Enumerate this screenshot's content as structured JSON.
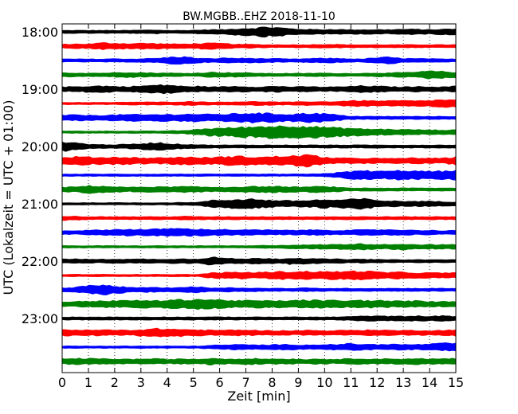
{
  "chart_data": {
    "type": "helicorder",
    "title": "BW.MGBB..EHZ 2018-11-10",
    "xlabel": "Zeit  [min]",
    "ylabel": "UTC (Lokalzeit = UTC + 01:00)",
    "xlim": [
      0,
      15
    ],
    "x_ticks": [
      "0",
      "1",
      "2",
      "3",
      "4",
      "5",
      "6",
      "7",
      "8",
      "9",
      "10",
      "11",
      "12",
      "13",
      "14",
      "15"
    ],
    "y_ticks": [
      "18:00",
      "19:00",
      "20:00",
      "21:00",
      "22:00",
      "23:00"
    ],
    "trace_interval_min": 15,
    "start_time": "18:00",
    "grid": "vertical dotted",
    "trace_colors": [
      "#000000",
      "#ff0000",
      "#0000ff",
      "#008000"
    ],
    "traces": [
      {
        "start": "18:00",
        "color": "#000000",
        "amplitude": [
          0.3,
          0.3,
          0.3,
          0.3,
          0.3,
          0.3,
          0.4,
          0.4,
          0.3,
          0.3,
          0.4,
          0.5,
          0.5,
          0.8,
          0.9,
          1.2,
          1.0,
          0.7,
          0.6,
          0.5,
          0.6,
          0.5,
          0.5,
          0.5,
          0.5,
          0.6,
          0.6,
          0.5,
          0.6,
          0.7
        ]
      },
      {
        "start": "18:15",
        "color": "#ff0000",
        "amplitude": [
          0.4,
          0.5,
          0.5,
          0.8,
          0.7,
          0.6,
          0.7,
          0.6,
          0.5,
          0.5,
          0.6,
          0.7,
          0.6,
          0.4,
          0.4,
          0.3,
          0.3,
          0.3,
          0.3,
          0.4,
          0.4,
          0.3,
          0.3,
          0.3,
          0.3,
          0.3,
          0.3,
          0.3,
          0.3,
          0.3
        ]
      },
      {
        "start": "18:30",
        "color": "#0000ff",
        "amplitude": [
          0.3,
          0.3,
          0.3,
          0.3,
          0.4,
          0.3,
          0.4,
          0.5,
          0.8,
          0.9,
          0.5,
          0.4,
          0.6,
          0.5,
          0.5,
          0.4,
          0.4,
          0.3,
          0.4,
          0.5,
          0.5,
          0.4,
          0.3,
          0.6,
          0.8,
          0.5,
          0.4,
          0.4,
          0.3,
          0.3
        ]
      },
      {
        "start": "18:45",
        "color": "#008000",
        "amplitude": [
          0.5,
          0.4,
          0.4,
          0.4,
          0.5,
          0.6,
          0.5,
          0.4,
          0.4,
          0.3,
          0.4,
          0.6,
          0.5,
          0.5,
          0.4,
          0.3,
          0.3,
          0.3,
          0.3,
          0.4,
          0.3,
          0.3,
          0.3,
          0.4,
          0.4,
          0.5,
          0.6,
          0.9,
          0.8,
          0.6
        ]
      },
      {
        "start": "19:00",
        "color": "#000000",
        "amplitude": [
          0.5,
          0.6,
          0.7,
          0.8,
          0.6,
          0.6,
          0.8,
          1.0,
          1.0,
          0.6,
          0.7,
          0.5,
          0.6,
          0.7,
          0.5,
          0.6,
          0.7,
          0.5,
          0.6,
          0.5,
          0.5,
          0.6,
          0.8,
          0.7,
          0.6,
          0.5,
          0.6,
          0.6,
          0.5,
          0.7
        ]
      },
      {
        "start": "19:15",
        "color": "#ff0000",
        "amplitude": [
          0.2,
          0.2,
          0.2,
          0.2,
          0.2,
          0.3,
          0.3,
          0.3,
          0.3,
          0.4,
          0.4,
          0.3,
          0.3,
          0.4,
          0.4,
          0.4,
          0.3,
          0.3,
          0.4,
          0.4,
          0.4,
          0.6,
          0.7,
          0.6,
          0.6,
          0.7,
          0.6,
          0.7,
          0.9,
          0.8
        ]
      },
      {
        "start": "19:30",
        "color": "#0000ff",
        "amplitude": [
          0.6,
          0.7,
          0.6,
          0.6,
          0.7,
          0.8,
          0.7,
          0.8,
          0.8,
          0.9,
          0.9,
          0.8,
          0.9,
          1.0,
          1.2,
          1.1,
          0.9,
          0.9,
          1.1,
          1.1,
          0.8,
          0.4,
          0.3,
          0.3,
          0.3,
          0.3,
          0.3,
          0.3,
          0.3,
          0.3
        ]
      },
      {
        "start": "19:45",
        "color": "#008000",
        "amplitude": [
          0.2,
          0.2,
          0.2,
          0.2,
          0.2,
          0.2,
          0.2,
          0.2,
          0.3,
          0.3,
          0.7,
          0.9,
          1.0,
          1.2,
          1.3,
          1.5,
          1.5,
          1.6,
          1.5,
          1.3,
          1.1,
          1.0,
          0.8,
          0.7,
          0.7,
          0.6,
          0.6,
          0.5,
          0.5,
          0.5
        ]
      },
      {
        "start": "20:00",
        "color": "#000000",
        "amplitude": [
          1.2,
          0.9,
          0.5,
          0.4,
          0.4,
          0.5,
          0.7,
          1.0,
          0.6,
          0.5,
          0.4,
          0.3,
          0.3,
          0.3,
          0.3,
          0.3,
          0.3,
          0.3,
          0.3,
          0.3,
          0.3,
          0.3,
          0.3,
          0.3,
          0.3,
          0.3,
          0.3,
          0.3,
          0.3,
          0.3
        ]
      },
      {
        "start": "20:15",
        "color": "#ff0000",
        "amplitude": [
          0.7,
          1.0,
          0.9,
          0.8,
          0.9,
          0.8,
          0.7,
          0.7,
          0.8,
          0.9,
          0.8,
          0.8,
          1.0,
          1.1,
          0.9,
          0.9,
          1.1,
          1.2,
          1.5,
          1.0,
          0.7,
          0.6,
          0.6,
          0.6,
          0.5,
          0.6,
          0.7,
          0.6,
          0.6,
          0.9
        ]
      },
      {
        "start": "20:30",
        "color": "#0000ff",
        "amplitude": [
          0.2,
          0.2,
          0.2,
          0.2,
          0.2,
          0.2,
          0.2,
          0.2,
          0.2,
          0.2,
          0.2,
          0.2,
          0.2,
          0.2,
          0.2,
          0.2,
          0.2,
          0.2,
          0.2,
          0.3,
          0.5,
          0.8,
          1.1,
          1.0,
          0.9,
          1.2,
          1.0,
          0.9,
          1.0,
          1.1
        ]
      },
      {
        "start": "20:45",
        "color": "#008000",
        "amplitude": [
          0.5,
          0.6,
          0.9,
          0.8,
          0.6,
          0.5,
          0.6,
          0.6,
          0.6,
          0.7,
          0.6,
          0.5,
          0.5,
          0.6,
          0.7,
          0.7,
          0.7,
          0.6,
          0.6,
          0.7,
          0.6,
          0.3,
          0.3,
          0.3,
          0.3,
          0.3,
          0.3,
          0.3,
          0.3,
          0.3
        ]
      },
      {
        "start": "21:00",
        "color": "#000000",
        "amplitude": [
          0.2,
          0.2,
          0.2,
          0.2,
          0.2,
          0.2,
          0.2,
          0.2,
          0.2,
          0.3,
          0.3,
          0.8,
          0.9,
          1.1,
          1.2,
          0.9,
          0.8,
          0.7,
          0.8,
          1.0,
          0.9,
          1.0,
          1.3,
          0.9,
          0.7,
          0.6,
          0.6,
          0.6,
          0.5,
          0.4
        ]
      },
      {
        "start": "21:15",
        "color": "#ff0000",
        "amplitude": [
          0.5,
          0.4,
          0.3,
          0.3,
          0.3,
          0.3,
          0.3,
          0.3,
          0.3,
          0.4,
          0.3,
          0.3,
          0.3,
          0.3,
          0.3,
          0.3,
          0.3,
          0.3,
          0.3,
          0.3,
          0.3,
          0.3,
          0.3,
          0.3,
          0.3,
          0.3,
          0.3,
          0.3,
          0.3,
          0.3
        ]
      },
      {
        "start": "21:30",
        "color": "#0000ff",
        "amplitude": [
          0.4,
          0.4,
          0.5,
          0.6,
          0.7,
          0.8,
          0.7,
          0.8,
          1.0,
          0.9,
          0.8,
          0.7,
          0.7,
          0.6,
          0.6,
          0.6,
          0.5,
          0.5,
          0.6,
          0.6,
          0.5,
          0.5,
          0.6,
          0.6,
          0.7,
          0.6,
          0.5,
          0.5,
          0.4,
          0.5
        ]
      },
      {
        "start": "21:45",
        "color": "#008000",
        "amplitude": [
          0.2,
          0.2,
          0.2,
          0.2,
          0.2,
          0.2,
          0.2,
          0.2,
          0.2,
          0.2,
          0.2,
          0.2,
          0.2,
          0.2,
          0.2,
          0.3,
          0.3,
          0.4,
          0.4,
          0.5,
          0.5,
          0.6,
          0.7,
          0.6,
          0.5,
          0.7,
          0.5,
          0.5,
          0.5,
          0.5
        ]
      },
      {
        "start": "22:00",
        "color": "#000000",
        "amplitude": [
          0.5,
          0.5,
          0.4,
          0.4,
          0.5,
          0.4,
          0.5,
          0.4,
          0.5,
          0.5,
          0.5,
          1.0,
          0.7,
          0.5,
          0.6,
          0.7,
          0.5,
          0.8,
          0.6,
          0.5,
          0.5,
          0.4,
          0.4,
          0.4,
          0.3,
          0.3,
          0.3,
          0.3,
          0.3,
          0.3
        ]
      },
      {
        "start": "22:15",
        "color": "#ff0000",
        "amplitude": [
          0.2,
          0.2,
          0.2,
          0.2,
          0.2,
          0.2,
          0.2,
          0.2,
          0.2,
          0.2,
          0.2,
          0.6,
          0.7,
          0.8,
          0.7,
          0.8,
          0.9,
          0.9,
          1.0,
          0.9,
          0.9,
          1.0,
          1.1,
          0.9,
          0.7,
          0.8,
          0.6,
          0.6,
          0.6,
          0.6
        ]
      },
      {
        "start": "22:30",
        "color": "#0000ff",
        "amplitude": [
          0.4,
          0.6,
          1.0,
          1.2,
          0.9,
          0.5,
          0.6,
          0.5,
          0.5,
          0.6,
          0.7,
          0.4,
          0.5,
          0.4,
          0.4,
          0.3,
          0.3,
          0.3,
          0.4,
          0.3,
          0.3,
          0.3,
          0.3,
          0.3,
          0.3,
          0.3,
          0.3,
          0.3,
          0.3,
          0.3
        ]
      },
      {
        "start": "22:45",
        "color": "#008000",
        "amplitude": [
          0.5,
          0.6,
          0.7,
          0.8,
          0.8,
          0.9,
          0.9,
          0.8,
          1.0,
          1.1,
          1.2,
          1.1,
          1.0,
          0.8,
          0.9,
          0.8,
          0.8,
          0.9,
          1.0,
          0.9,
          0.9,
          0.8,
          0.9,
          0.9,
          0.8,
          0.7,
          0.8,
          0.6,
          0.6,
          0.7
        ]
      },
      {
        "start": "23:00",
        "color": "#000000",
        "amplitude": [
          0.3,
          0.3,
          0.3,
          0.3,
          0.3,
          0.3,
          0.3,
          0.3,
          0.3,
          0.3,
          0.3,
          0.3,
          0.3,
          0.3,
          0.3,
          0.3,
          0.3,
          0.3,
          0.3,
          0.3,
          0.3,
          0.4,
          0.5,
          0.6,
          0.5,
          0.5,
          0.6,
          0.5,
          0.6,
          0.5
        ]
      },
      {
        "start": "23:15",
        "color": "#ff0000",
        "amplitude": [
          0.8,
          0.7,
          0.6,
          0.7,
          0.6,
          0.6,
          0.8,
          1.0,
          0.9,
          0.8,
          0.7,
          0.6,
          0.6,
          0.7,
          0.6,
          0.5,
          0.5,
          0.5,
          0.6,
          0.5,
          0.5,
          0.6,
          0.6,
          0.7,
          0.6,
          0.5,
          0.6,
          0.5,
          0.6,
          0.7
        ]
      },
      {
        "start": "23:30",
        "color": "#0000ff",
        "amplitude": [
          0.2,
          0.2,
          0.2,
          0.2,
          0.2,
          0.2,
          0.2,
          0.2,
          0.2,
          0.2,
          0.2,
          0.4,
          0.5,
          0.6,
          0.5,
          0.5,
          0.6,
          0.6,
          0.5,
          0.6,
          0.6,
          0.8,
          0.7,
          0.6,
          0.7,
          0.6,
          0.6,
          0.7,
          0.9,
          1.0
        ]
      },
      {
        "start": "23:45",
        "color": "#008000",
        "amplitude": [
          0.6,
          0.7,
          0.7,
          0.6,
          0.6,
          0.5,
          0.6,
          0.6,
          0.5,
          0.6,
          0.5,
          0.8,
          0.6,
          0.6,
          0.7,
          0.6,
          0.6,
          0.6,
          0.5,
          0.6,
          0.5,
          0.6,
          0.7,
          0.6,
          0.6,
          0.6,
          0.7,
          0.6,
          0.6,
          0.7
        ]
      }
    ]
  }
}
